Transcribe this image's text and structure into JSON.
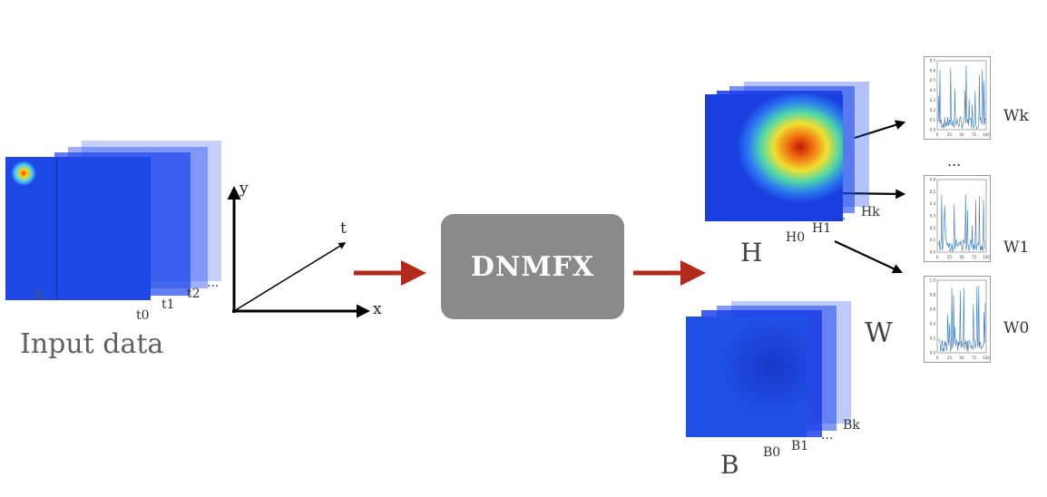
{
  "input": {
    "title": "Input data",
    "frame_labels": [
      "t0",
      "t1",
      "t2",
      "..."
    ],
    "inner_label": "x"
  },
  "axes": {
    "y_label": "y",
    "t_label": "t",
    "x_label": "x"
  },
  "process": {
    "label": "DNMFX"
  },
  "H": {
    "title": "H",
    "frame_labels": [
      "H0",
      "H1",
      "...",
      "Hk"
    ]
  },
  "B": {
    "title": "B",
    "frame_labels": [
      "B0",
      "B1",
      "...",
      "Bk"
    ]
  },
  "W": {
    "title": "W",
    "ellipsis": "...",
    "plots": [
      {
        "label": "Wk",
        "ytick_labels": [
          "0.7",
          "0.6",
          "0.5",
          "0.4",
          "0.3",
          "0.2",
          "0.1",
          "0.0"
        ],
        "xtick_labels": [
          "0",
          "25",
          "50",
          "75",
          "100"
        ]
      },
      {
        "label": "W1",
        "ytick_labels": [
          "0.6",
          "0.5",
          "0.4",
          "0.3",
          "0.2",
          "0.1",
          "0.0"
        ],
        "xtick_labels": [
          "0",
          "25",
          "50",
          "75",
          "100"
        ]
      },
      {
        "label": "W0",
        "ytick_labels": [
          "1.0",
          "0.8",
          "0.6",
          "0.4",
          "0.2",
          "0.0"
        ],
        "xtick_labels": [
          "0",
          "25",
          "50",
          "75",
          "100"
        ]
      }
    ]
  },
  "colors": {
    "frame_blue": "#1a3fe0",
    "arrow_red": "#b22a1c",
    "box_gray": "#8a8a8a",
    "line_blue": "#3a78b8"
  }
}
